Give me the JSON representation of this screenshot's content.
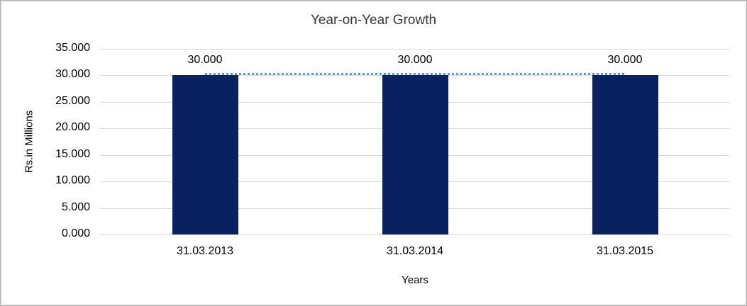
{
  "chart_data": {
    "type": "bar",
    "title": "Year-on-Year Growth",
    "xlabel": "Years",
    "ylabel": "Rs.in Millions",
    "categories": [
      "31.03.2013",
      "31.03.2014",
      "31.03.2015"
    ],
    "series": [
      {
        "name": "value-bars",
        "type": "bar",
        "values": [
          30,
          30,
          30
        ],
        "data_labels": [
          "30.000",
          "30.000",
          "30.000"
        ],
        "color": "#0a2161"
      },
      {
        "name": "trend-overlay",
        "type": "line",
        "style": "dotted",
        "values": [
          30,
          30,
          30
        ],
        "color": "#5a9ad5"
      }
    ],
    "ylim": [
      0,
      35
    ],
    "ytick_step": 5,
    "ytick_labels": [
      "0.000",
      "5.000",
      "10.000",
      "15.000",
      "20.000",
      "25.000",
      "30.000",
      "35.000"
    ],
    "grid": true,
    "gridline_color": "#d9d9d9",
    "legend": "none"
  }
}
